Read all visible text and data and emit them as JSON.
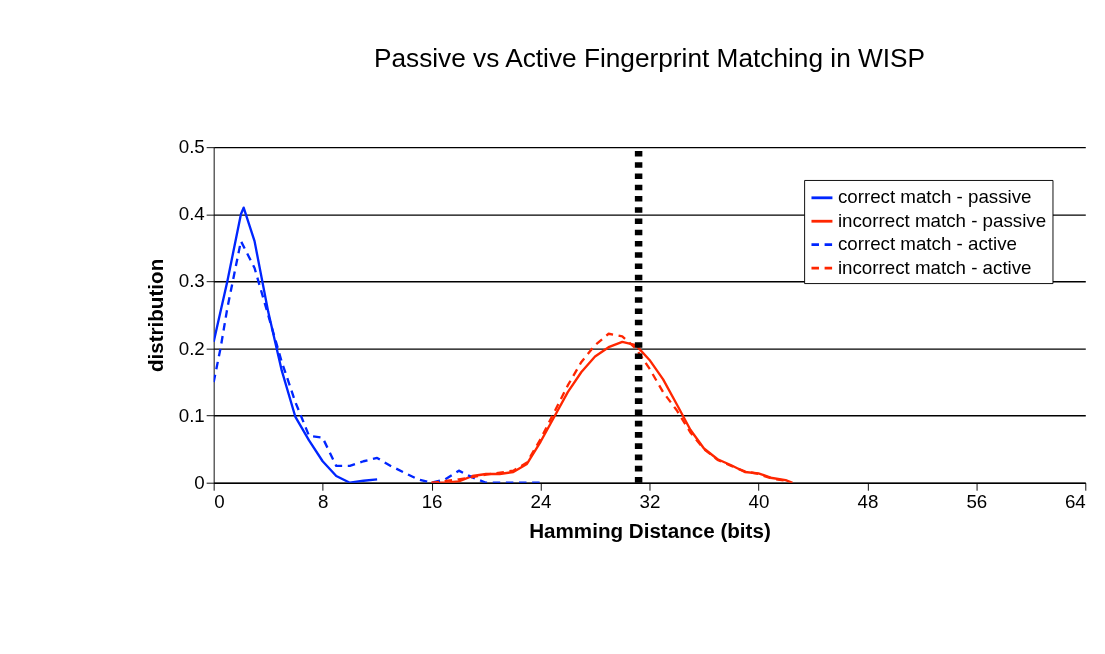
{
  "chart_data": {
    "type": "line",
    "title": "Passive vs Active Fingerprint Matching in WISP",
    "xlabel": "Hamming Distance (bits)",
    "ylabel": "distribution",
    "xlim": [
      0,
      64
    ],
    "xticks": [
      0,
      8,
      16,
      24,
      32,
      40,
      48,
      56,
      64
    ],
    "ylim": [
      0,
      0.5
    ],
    "yticks": [
      0,
      0.1,
      0.2,
      0.3,
      0.4,
      0.5
    ],
    "grid": "y",
    "legend": "top right",
    "series": [
      {
        "name": "correct match - passive",
        "color": "#0026ff",
        "line_style": "solid",
        "x": [
          0,
          1,
          2,
          2.2,
          3,
          4,
          5,
          6,
          7,
          8,
          9,
          10,
          11,
          12
        ],
        "values": [
          0.21,
          0.3,
          0.4,
          0.41,
          0.36,
          0.255,
          0.167,
          0.098,
          0.063,
          0.032,
          0.01,
          0,
          0.003,
          0.005
        ]
      },
      {
        "name": "incorrect match - passive",
        "color": "#ff2600",
        "line_style": "solid",
        "x": [
          16,
          17,
          18,
          19,
          20,
          21,
          22,
          23,
          24,
          25,
          26,
          27,
          28,
          29,
          30,
          31,
          32,
          33,
          34,
          35,
          36,
          37,
          38,
          39,
          40,
          41,
          42,
          42.5
        ],
        "values": [
          0,
          0,
          0.002,
          0.01,
          0.013,
          0.013,
          0.016,
          0.028,
          0.061,
          0.098,
          0.135,
          0.165,
          0.188,
          0.202,
          0.21,
          0.205,
          0.183,
          0.154,
          0.117,
          0.079,
          0.051,
          0.035,
          0.026,
          0.016,
          0.014,
          0.007,
          0.004,
          0
        ]
      },
      {
        "name": "correct match - active",
        "color": "#0026ff",
        "line_style": "dashed",
        "x": [
          0,
          0.5,
          1,
          2,
          3,
          4,
          5,
          6,
          7,
          8,
          9,
          10,
          11,
          12,
          13,
          14,
          15,
          16,
          17,
          18,
          19,
          20,
          22,
          24
        ],
        "values": [
          0.15,
          0.2,
          0.26,
          0.36,
          0.32,
          0.25,
          0.18,
          0.12,
          0.07,
          0.067,
          0.025,
          0.025,
          0.032,
          0.037,
          0.025,
          0.015,
          0.005,
          0,
          0.005,
          0.018,
          0.008,
          0,
          0,
          0
        ]
      },
      {
        "name": "incorrect match - active",
        "color": "#ff2600",
        "line_style": "dashed",
        "x": [
          16,
          18,
          20,
          22,
          23,
          24,
          25,
          26,
          27,
          28,
          29,
          30,
          31,
          32,
          33,
          34,
          35,
          36,
          37,
          38,
          39,
          40,
          41,
          42
        ],
        "values": [
          0,
          0.005,
          0.012,
          0.018,
          0.03,
          0.065,
          0.105,
          0.145,
          0.18,
          0.205,
          0.222,
          0.218,
          0.2,
          0.17,
          0.135,
          0.108,
          0.075,
          0.05,
          0.034,
          0.025,
          0.017,
          0.013,
          0.006,
          0.003
        ]
      }
    ],
    "ref_lines": [
      {
        "axis": "x",
        "value": 31.2,
        "color": "#000000",
        "line_style": "dotted"
      }
    ]
  }
}
